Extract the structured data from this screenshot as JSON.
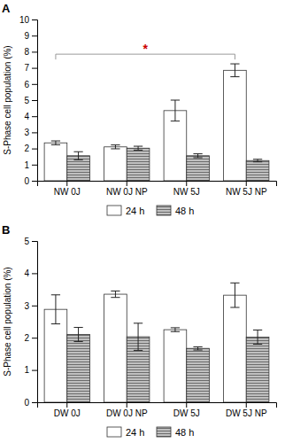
{
  "chart_data": [
    {
      "type": "bar",
      "title": "A",
      "categories": [
        "NW 0J",
        "NW 0J NP",
        "NW 5J",
        "NW 5J NP"
      ],
      "series": [
        {
          "name": "24 h",
          "color": "#ffffff",
          "values": [
            2.35,
            2.1,
            4.35,
            6.85
          ],
          "errors": [
            0.12,
            0.12,
            0.65,
            0.4
          ]
        },
        {
          "name": "48 h",
          "color": "#c0c0c0",
          "values": [
            1.55,
            2.02,
            1.55,
            1.25
          ],
          "errors": [
            0.25,
            0.12,
            0.12,
            0.08
          ]
        }
      ],
      "y_label": "S-Phase cell population (%)",
      "ylim": [
        0,
        10
      ],
      "yticks": [
        0,
        1,
        2,
        3,
        4,
        5,
        6,
        7,
        8,
        9,
        10
      ],
      "annotations": [
        {
          "text": "*",
          "y": 7.85,
          "x": [
            "NW 0J",
            "NW 5J NP"
          ],
          "color": "#cc0000"
        }
      ],
      "grid": false,
      "legend": "bottom"
    },
    {
      "type": "bar",
      "title": "B",
      "categories": [
        "DW 0J",
        "DW 0J NP",
        "DW 5J",
        "DW 5J NP"
      ],
      "series": [
        {
          "name": "24 h",
          "color": "#ffffff",
          "values": [
            2.88,
            3.35,
            2.25,
            3.32
          ],
          "errors": [
            0.45,
            0.1,
            0.06,
            0.38
          ]
        },
        {
          "name": "48 h",
          "color": "#c0c0c0",
          "values": [
            2.1,
            2.03,
            1.67,
            2.02
          ],
          "errors": [
            0.22,
            0.42,
            0.05,
            0.22
          ]
        }
      ],
      "y_label": "S-Phase cell population (%)",
      "ylim": [
        0,
        5
      ],
      "yticks": [
        0,
        1,
        2,
        3,
        4,
        5
      ],
      "grid": false,
      "legend": "bottom"
    }
  ]
}
